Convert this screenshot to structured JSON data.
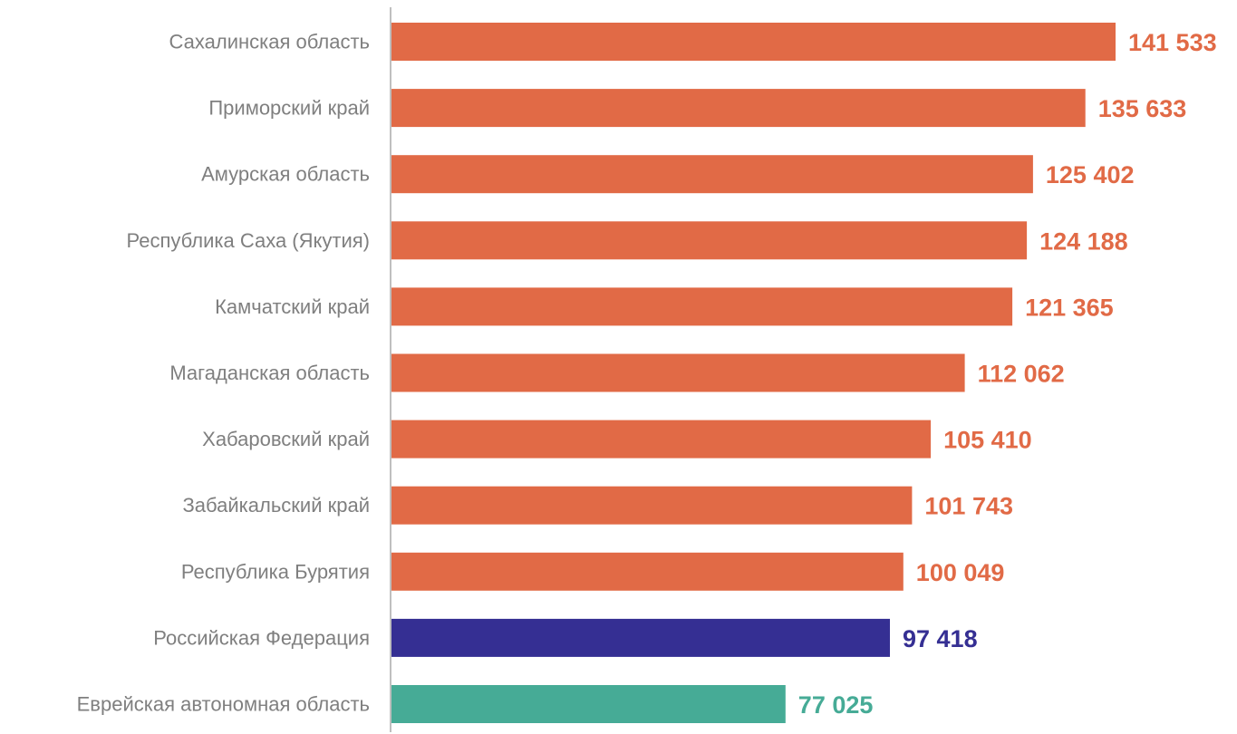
{
  "chart_data": {
    "type": "bar",
    "orientation": "horizontal",
    "categories": [
      "Сахалинская область",
      "Приморский край",
      "Амурская область",
      "Республика Саха (Якутия)",
      "Камчатский край",
      "Магаданская область",
      "Хабаровский край",
      "Забайкальский край",
      "Республика Бурятия",
      "Российская Федерация",
      "Еврейская автономная область"
    ],
    "values": [
      141533,
      135633,
      125402,
      124188,
      121365,
      112062,
      105410,
      101743,
      100049,
      97418,
      77025
    ],
    "value_labels": [
      "141 533",
      "135 633",
      "125 402",
      "124 188",
      "121 365",
      "112 062",
      "105 410",
      "101 743",
      "100 049",
      "97 418",
      "77 025"
    ],
    "bar_colors": [
      "#e16a46",
      "#e16a46",
      "#e16a46",
      "#e16a46",
      "#e16a46",
      "#e16a46",
      "#e16a46",
      "#e16a46",
      "#e16a46",
      "#352f93",
      "#46ab96"
    ],
    "xlim": [
      0,
      141533
    ],
    "grid": false,
    "legend": "none",
    "axis_color": "#bfbfbf",
    "label_color": "#7f7f7f"
  }
}
